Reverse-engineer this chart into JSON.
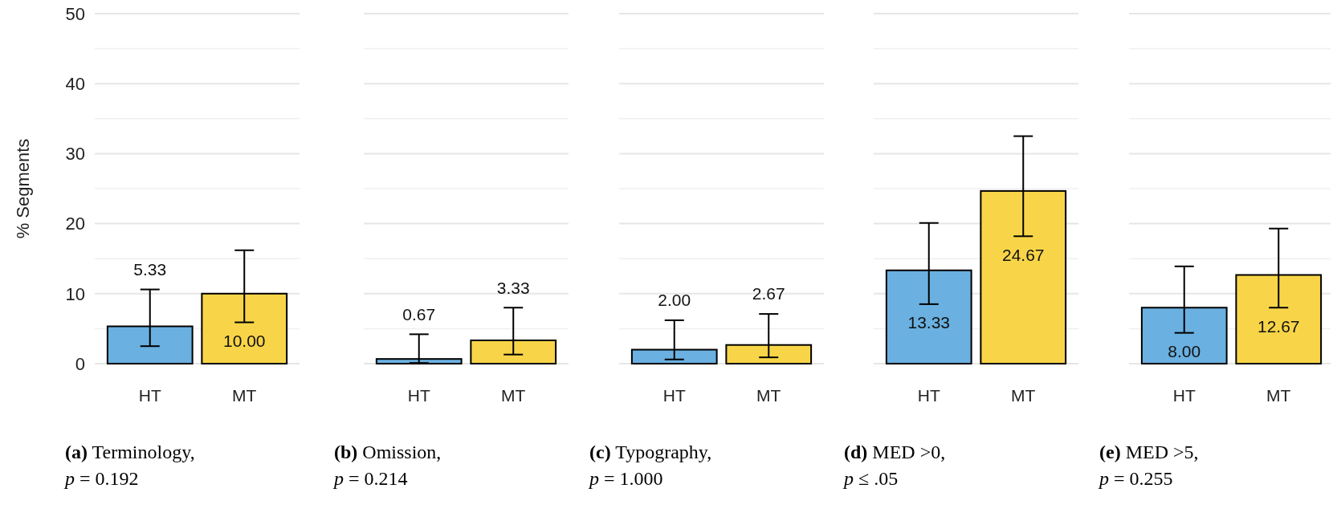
{
  "chart_data": [
    {
      "type": "bar",
      "title": "(a) Terminology, p = 0.192",
      "ylabel": "% Segments",
      "categories": [
        "HT",
        "MT"
      ],
      "values": [
        5.33,
        10.0
      ],
      "colors": [
        "#6ab0e0",
        "#f8d548"
      ],
      "errors": [
        [
          2.5,
          10.6
        ],
        [
          5.9,
          16.2
        ]
      ],
      "value_labels": [
        "5.33",
        "10.00"
      ],
      "ylim": [
        0,
        50
      ],
      "yticks": [
        0,
        10,
        20,
        30,
        40,
        50
      ],
      "grid": "y"
    },
    {
      "type": "bar",
      "title": "(b) Omission, p = 0.214",
      "categories": [
        "HT",
        "MT"
      ],
      "values": [
        0.67,
        3.33
      ],
      "colors": [
        "#6ab0e0",
        "#f8d548"
      ],
      "errors": [
        [
          0.1,
          4.2
        ],
        [
          1.3,
          8.0
        ]
      ],
      "value_labels": [
        "0.67",
        "3.33"
      ],
      "ylim": [
        0,
        50
      ],
      "yticks": [
        0,
        10,
        20,
        30,
        40,
        50
      ],
      "grid": "y",
      "tick_labels": "x"
    },
    {
      "type": "bar",
      "title": "(c) Typography, p = 1.000",
      "categories": [
        "HT",
        "MT"
      ],
      "values": [
        2.0,
        2.67
      ],
      "colors": [
        "#6ab0e0",
        "#f8d548"
      ],
      "errors": [
        [
          0.6,
          6.2
        ],
        [
          0.9,
          7.1
        ]
      ],
      "value_labels": [
        "2.00",
        "2.67"
      ],
      "ylim": [
        0,
        50
      ],
      "yticks": [
        0,
        10,
        20,
        30,
        40,
        50
      ],
      "grid": "y",
      "tick_labels": "x"
    },
    {
      "type": "bar",
      "title": "(d) MED >0, p ≤ .05",
      "categories": [
        "HT",
        "MT"
      ],
      "values": [
        13.33,
        24.67
      ],
      "colors": [
        "#6ab0e0",
        "#f8d548"
      ],
      "errors": [
        [
          8.5,
          20.1
        ],
        [
          18.2,
          32.5
        ]
      ],
      "value_labels": [
        "13.33",
        "24.67"
      ],
      "ylim": [
        0,
        50
      ],
      "yticks": [
        0,
        10,
        20,
        30,
        40,
        50
      ],
      "grid": "y",
      "tick_labels": "x"
    },
    {
      "type": "bar",
      "title": "(e) MED >5, p = 0.255",
      "categories": [
        "HT",
        "MT"
      ],
      "values": [
        8.0,
        12.67
      ],
      "colors": [
        "#6ab0e0",
        "#f8d548"
      ],
      "errors": [
        [
          4.4,
          13.9
        ],
        [
          8.0,
          19.3
        ]
      ],
      "value_labels": [
        "8.00",
        "12.67"
      ],
      "ylim": [
        0,
        50
      ],
      "yticks": [
        0,
        10,
        20,
        30,
        40,
        50
      ],
      "grid": "y",
      "tick_labels": "x"
    }
  ]
}
